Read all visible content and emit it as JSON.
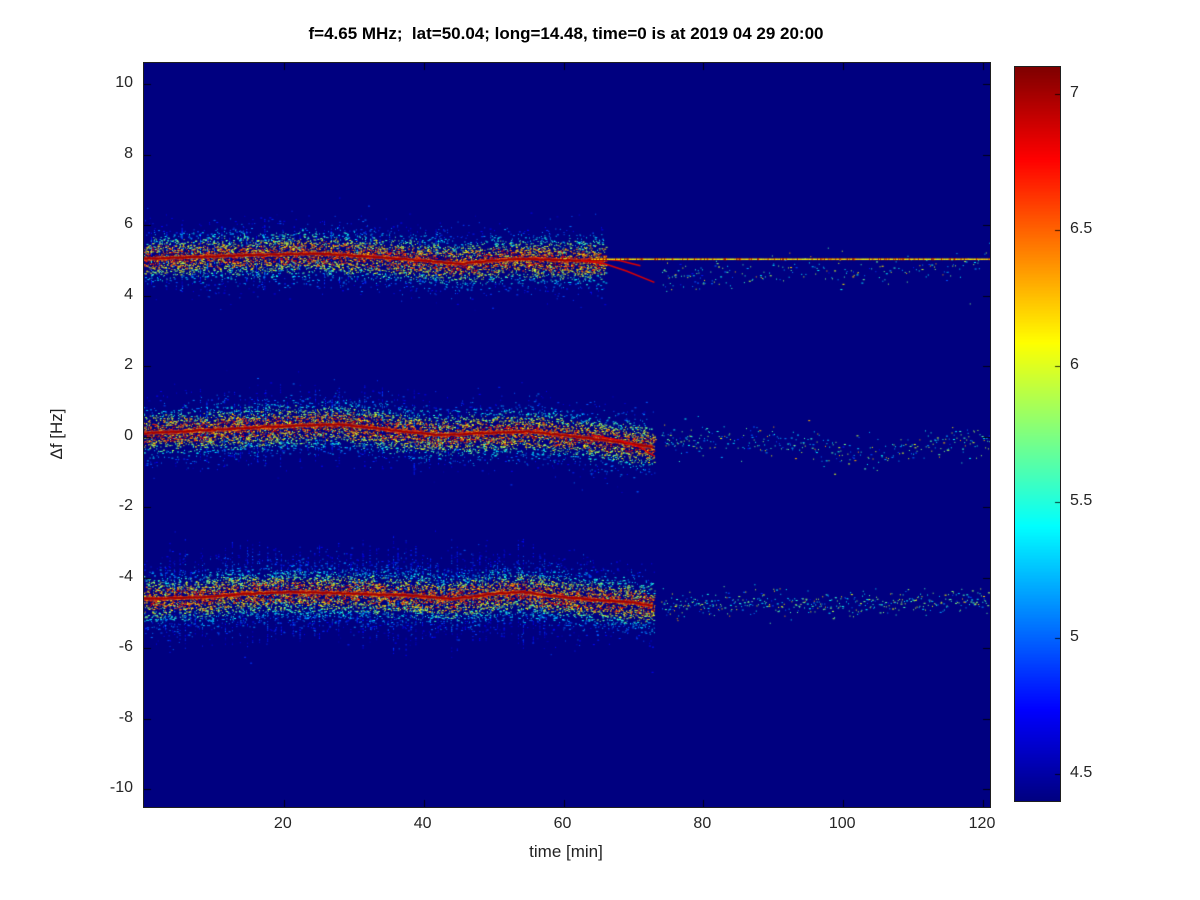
{
  "title": "f=4.65 MHz;  lat=50.04; long=14.48, time=0 is at 2019 04 29 20:00",
  "chart_data": {
    "type": "heatmap",
    "title": "f=4.65 MHz;  lat=50.04; long=14.48, time=0 is at 2019 04 29 20:00",
    "xlabel": "time [min]",
    "ylabel": "Δf [Hz]",
    "xlim": [
      0,
      121
    ],
    "ylim": [
      -10.5,
      10.6
    ],
    "x_ticks": [
      20,
      40,
      60,
      80,
      100,
      120
    ],
    "y_ticks": [
      -10,
      -8,
      -6,
      -4,
      -2,
      0,
      2,
      4,
      6,
      8,
      10
    ],
    "grid": false,
    "colorbar": {
      "colormap": "jet",
      "min": 4.4,
      "max": 7.1,
      "ticks": [
        4.5,
        5,
        5.5,
        6,
        6.5,
        7
      ],
      "position": "right"
    },
    "background_value": 4.4,
    "description": "Doppler spectrogram with three noisy spectral traces: a strong meandering ridge near +5 Hz, one near 0 Hz and one near -4.5 Hz. Dense red/orange ridges with blue-cyan speckle and vertical comb striations last from t=0 to about t=73 min, then collapse into faint thin cyan/green traces until t=120. The +5 Hz trace leaves a thin yellow line at 5.05 Hz after t≈65 with a red streak descending to ≈4.4 Hz near t=63–73.",
    "bands": [
      {
        "name": "upper-trace-+5Hz",
        "center_keyframes": [
          [
            0,
            5.05
          ],
          [
            8,
            5.1
          ],
          [
            15,
            5.15
          ],
          [
            25,
            5.2
          ],
          [
            33,
            5.1
          ],
          [
            40,
            5.0
          ],
          [
            45,
            4.9
          ],
          [
            50,
            5.0
          ],
          [
            55,
            5.05
          ],
          [
            60,
            5.0
          ],
          [
            66,
            5.0
          ]
        ],
        "noise_sigma": 0.42,
        "density": 7,
        "dense_end": 66,
        "active_end": 66,
        "streaks": {
          "period": 1.1,
          "start": 1,
          "end": 42,
          "span": 0.9,
          "prob": 0.85
        },
        "descents": [
          [
            [
              62.5,
              5.0
            ],
            [
              66,
              4.9
            ],
            [
              69,
              4.7
            ],
            [
              71.5,
              4.5
            ],
            [
              73,
              4.38
            ]
          ],
          [
            [
              65,
              5.05
            ],
            [
              68,
              5.0
            ],
            [
              71,
              4.85
            ]
          ]
        ],
        "tail_line_value": 6.15,
        "tail_line_keyframes": [
          [
            64,
            5.05
          ],
          [
            121,
            5.05
          ]
        ],
        "tail_scatter": {
          "start": 74,
          "end": 121,
          "sigma": 0.22,
          "density": 1.0,
          "keyframes": [
            [
              74,
              4.5
            ],
            [
              80,
              4.55
            ],
            [
              88,
              4.7
            ],
            [
              96,
              4.75
            ],
            [
              103,
              4.6
            ],
            [
              108,
              4.75
            ],
            [
              115,
              4.8
            ],
            [
              121,
              4.8
            ]
          ]
        }
      },
      {
        "name": "middle-trace-0Hz",
        "center_keyframes": [
          [
            0,
            0.1
          ],
          [
            10,
            0.2
          ],
          [
            20,
            0.3
          ],
          [
            28,
            0.35
          ],
          [
            35,
            0.2
          ],
          [
            42,
            0.05
          ],
          [
            48,
            0.1
          ],
          [
            55,
            0.15
          ],
          [
            62,
            0.0
          ],
          [
            68,
            -0.15
          ],
          [
            73,
            -0.3
          ]
        ],
        "noise_sigma": 0.42,
        "density": 7,
        "dense_end": 73,
        "active_end": 73,
        "streaks": {
          "period": 1.2,
          "start": 8,
          "end": 45,
          "span": 1.1,
          "prob": 0.8
        },
        "descents": [
          [
            [
              64,
              0.05
            ],
            [
              68,
              -0.1
            ],
            [
              71,
              -0.3
            ],
            [
              73,
              -0.55
            ]
          ]
        ],
        "tail_scatter": {
          "start": 74,
          "end": 121,
          "sigma": 0.2,
          "density": 1.7,
          "keyframes": [
            [
              74,
              -0.1
            ],
            [
              85,
              -0.1
            ],
            [
              95,
              -0.2
            ],
            [
              102,
              -0.45
            ],
            [
              106,
              -0.55
            ],
            [
              112,
              -0.2
            ],
            [
              121,
              -0.1
            ]
          ]
        }
      },
      {
        "name": "lower-trace--4.5Hz",
        "center_keyframes": [
          [
            0,
            -4.6
          ],
          [
            8,
            -4.55
          ],
          [
            15,
            -4.45
          ],
          [
            22,
            -4.4
          ],
          [
            30,
            -4.45
          ],
          [
            38,
            -4.5
          ],
          [
            44,
            -4.6
          ],
          [
            50,
            -4.45
          ],
          [
            54,
            -4.4
          ],
          [
            60,
            -4.55
          ],
          [
            66,
            -4.65
          ],
          [
            70,
            -4.7
          ],
          [
            73,
            -4.8
          ]
        ],
        "noise_sigma": 0.48,
        "density": 8,
        "dense_end": 73,
        "active_end": 73,
        "streaks": {
          "period": 0.9,
          "start": 3,
          "end": 58,
          "span": 1.5,
          "prob": 0.9
        },
        "descents": [],
        "tail_scatter": {
          "start": 74,
          "end": 121,
          "sigma": 0.18,
          "density": 2.2,
          "keyframes": [
            [
              74,
              -4.75
            ],
            [
              85,
              -4.7
            ],
            [
              95,
              -4.75
            ],
            [
              105,
              -4.7
            ],
            [
              115,
              -4.65
            ],
            [
              121,
              -4.6
            ]
          ]
        }
      }
    ]
  },
  "colors": {
    "figure_background": "#ffffff",
    "axis_color": "#262626",
    "plot_background": "#000080",
    "ridge_color": "#a00000"
  }
}
